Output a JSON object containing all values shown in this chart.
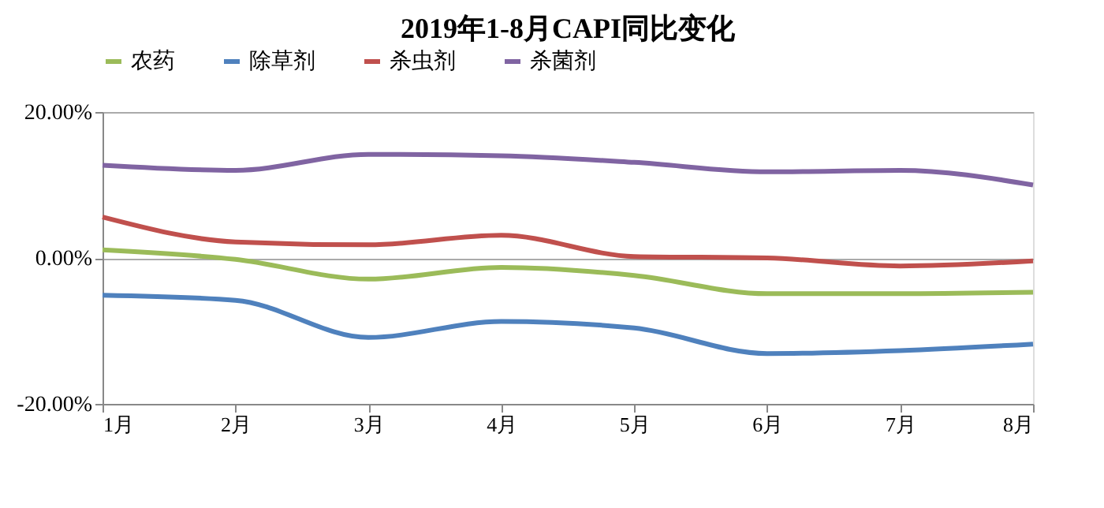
{
  "chart_data": {
    "type": "line",
    "title": "2019年1-8月CAPI同比变化",
    "categories": [
      "1月",
      "2月",
      "3月",
      "4月",
      "5月",
      "6月",
      "7月",
      "8月"
    ],
    "series": [
      {
        "name": "农药",
        "color": "#9bbb59",
        "values": [
          1.1,
          -0.2,
          -2.9,
          -1.3,
          -2.4,
          -4.9,
          -4.9,
          -4.7
        ]
      },
      {
        "name": "除草剂",
        "color": "#4f81bd",
        "values": [
          -5.1,
          -5.8,
          -10.9,
          -8.7,
          -9.6,
          -13.1,
          -12.7,
          -11.8
        ]
      },
      {
        "name": "杀虫剂",
        "color": "#c0504d",
        "values": [
          5.6,
          2.2,
          1.8,
          3.1,
          0.2,
          0.0,
          -1.1,
          -0.4
        ]
      },
      {
        "name": "杀菌剂",
        "color": "#8064a2",
        "values": [
          12.7,
          12.0,
          14.2,
          14.0,
          13.1,
          11.8,
          12.0,
          10.0
        ]
      }
    ],
    "ylim": [
      -20,
      20
    ],
    "yticks": [
      {
        "value": -20,
        "label": "-20.00%"
      },
      {
        "value": 0,
        "label": "0.00%"
      },
      {
        "value": 20,
        "label": "20.00%"
      }
    ],
    "grid": "y",
    "legend": "top",
    "marker": "none",
    "line_style": "solid"
  }
}
